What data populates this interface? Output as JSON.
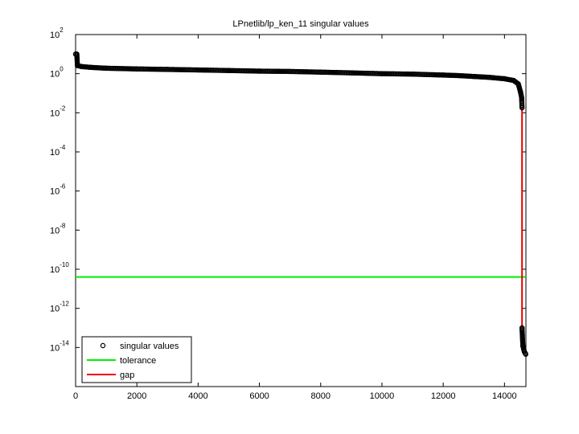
{
  "chart_data": {
    "type": "scatter",
    "title": "LPnetlib/lp_ken_11 singular values",
    "xlabel": "",
    "ylabel": "",
    "y_scale": "log",
    "xlim": [
      0,
      14700
    ],
    "ylim_exponent": [
      -16,
      2
    ],
    "x_ticks": [
      {
        "value": 0,
        "label": "0"
      },
      {
        "value": 2000,
        "label": "2000"
      },
      {
        "value": 4000,
        "label": "4000"
      },
      {
        "value": 6000,
        "label": "6000"
      },
      {
        "value": 8000,
        "label": "8000"
      },
      {
        "value": 10000,
        "label": "10000"
      },
      {
        "value": 12000,
        "label": "12000"
      },
      {
        "value": 14000,
        "label": "14000"
      }
    ],
    "y_ticks": [
      {
        "exp": 2,
        "base": "10",
        "sup": "2"
      },
      {
        "exp": 0,
        "base": "10",
        "sup": "0"
      },
      {
        "exp": -2,
        "base": "10",
        "sup": "-2"
      },
      {
        "exp": -4,
        "base": "10",
        "sup": "-4"
      },
      {
        "exp": -6,
        "base": "10",
        "sup": "-6"
      },
      {
        "exp": -8,
        "base": "10",
        "sup": "-8"
      },
      {
        "exp": -10,
        "base": "10",
        "sup": "-10"
      },
      {
        "exp": -12,
        "base": "10",
        "sup": "-12"
      },
      {
        "exp": -14,
        "base": "10",
        "sup": "-14"
      }
    ],
    "grid": false,
    "legend_position": "bottom-left",
    "series": [
      {
        "name": "singular values",
        "kind": "markers",
        "color": "#000000",
        "points": [
          [
            1,
            10.0
          ],
          [
            40,
            10.0
          ],
          [
            60,
            2.6
          ],
          [
            200,
            2.3
          ],
          [
            500,
            2.1
          ],
          [
            1000,
            1.9
          ],
          [
            2000,
            1.75
          ],
          [
            3000,
            1.65
          ],
          [
            4000,
            1.55
          ],
          [
            5000,
            1.45
          ],
          [
            6000,
            1.35
          ],
          [
            7000,
            1.3
          ],
          [
            8000,
            1.2
          ],
          [
            9000,
            1.1
          ],
          [
            10000,
            1.0
          ],
          [
            11000,
            0.95
          ],
          [
            12000,
            0.85
          ],
          [
            12500,
            0.8
          ],
          [
            13000,
            0.72
          ],
          [
            13500,
            0.65
          ],
          [
            14000,
            0.55
          ],
          [
            14300,
            0.45
          ],
          [
            14450,
            0.3
          ],
          [
            14520,
            0.12
          ],
          [
            14560,
            0.06
          ],
          [
            14573,
            0.018
          ],
          [
            14573,
            1e-13
          ],
          [
            14600,
            1.2e-14
          ],
          [
            14630,
            8e-15
          ],
          [
            14650,
            6e-15
          ],
          [
            14680,
            5e-15
          ],
          [
            14694,
            4.5e-15
          ]
        ]
      },
      {
        "name": "tolerance",
        "kind": "hline",
        "color": "#00ee00",
        "y": 4e-11
      },
      {
        "name": "gap",
        "kind": "vline",
        "color": "#ee0000",
        "x": 14573,
        "y_from": 1e-13,
        "y_to": 0.018
      }
    ]
  }
}
